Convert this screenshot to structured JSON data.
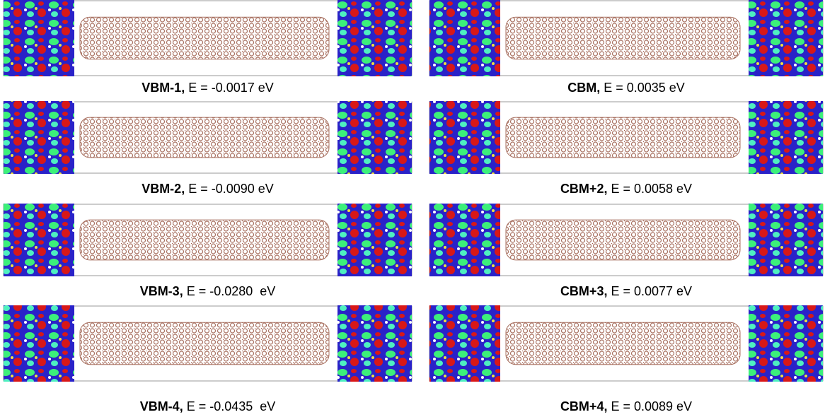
{
  "rows": [
    {
      "left": {
        "label": "VBM-1,",
        "energy": "E = -0.0017 eV"
      },
      "right": {
        "label": "CBM,",
        "energy": "E = 0.0035 eV"
      }
    },
    {
      "left": {
        "label": "VBM-2,",
        "energy": "E = -0.0090 eV"
      },
      "right": {
        "label": "CBM+2,",
        "energy": "E = 0.0058 eV"
      }
    },
    {
      "left": {
        "label": "VBM-3,",
        "energy": "E = -0.0280  eV"
      },
      "right": {
        "label": "CBM+3,",
        "energy": "E = 0.0077 eV"
      }
    },
    {
      "left": {
        "label": "VBM-4,",
        "energy": "E = -0.0435  eV"
      },
      "right": {
        "label": "CBM+4,",
        "energy": "E = 0.0089 eV"
      }
    }
  ]
}
